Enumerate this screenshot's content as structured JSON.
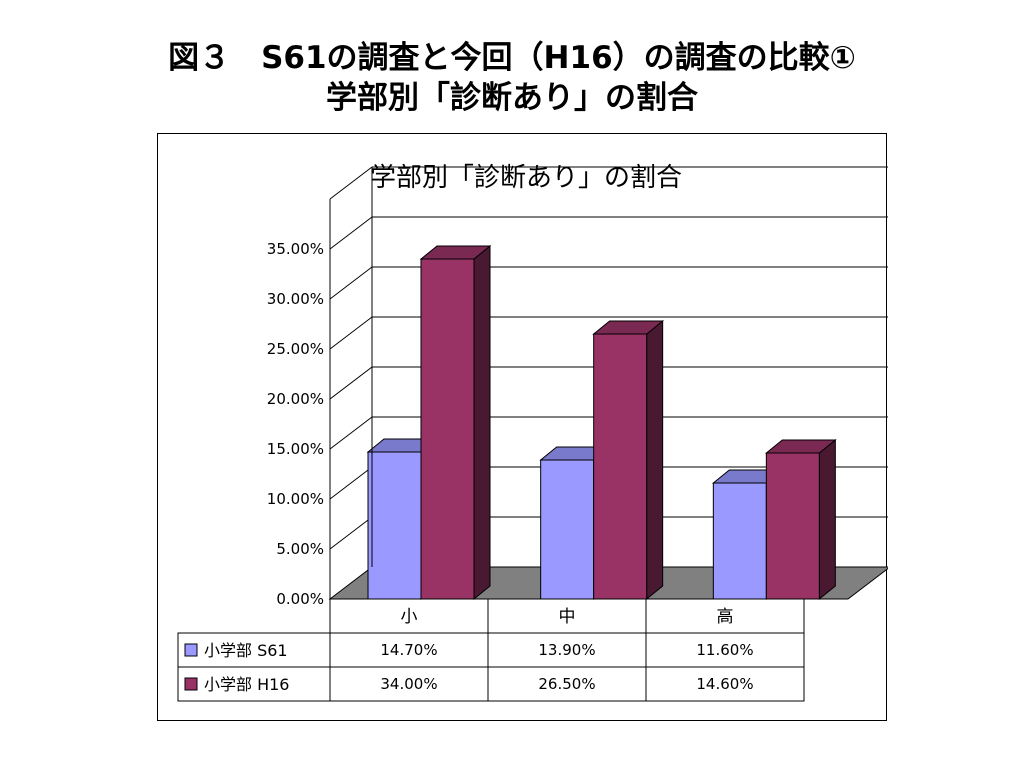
{
  "slide": {
    "title_line1": "図３　S61の調査と今回（H16）の調査の比較①",
    "title_line2": "学部別「診断あり」の割合"
  },
  "chart_data": {
    "type": "bar",
    "title": "学部別「診断あり」の割合",
    "categories": [
      "小",
      "中",
      "高"
    ],
    "series": [
      {
        "name": "小学部 S61",
        "values": [
          0.147,
          0.139,
          0.116
        ],
        "labels": [
          "14.70%",
          "13.90%",
          "11.60%"
        ],
        "color": "#9999FF"
      },
      {
        "name": "小学部 H16",
        "values": [
          0.34,
          0.265,
          0.146
        ],
        "labels": [
          "34.00%",
          "26.50%",
          "14.60%"
        ],
        "color": "#993366"
      }
    ],
    "yticks": [
      "0.00%",
      "5.00%",
      "10.00%",
      "15.00%",
      "20.00%",
      "25.00%",
      "30.00%",
      "35.00%"
    ],
    "ylim": [
      0,
      0.4
    ],
    "grid": true,
    "three_d": true,
    "floor_color": "#808080",
    "legend": "data-table"
  }
}
